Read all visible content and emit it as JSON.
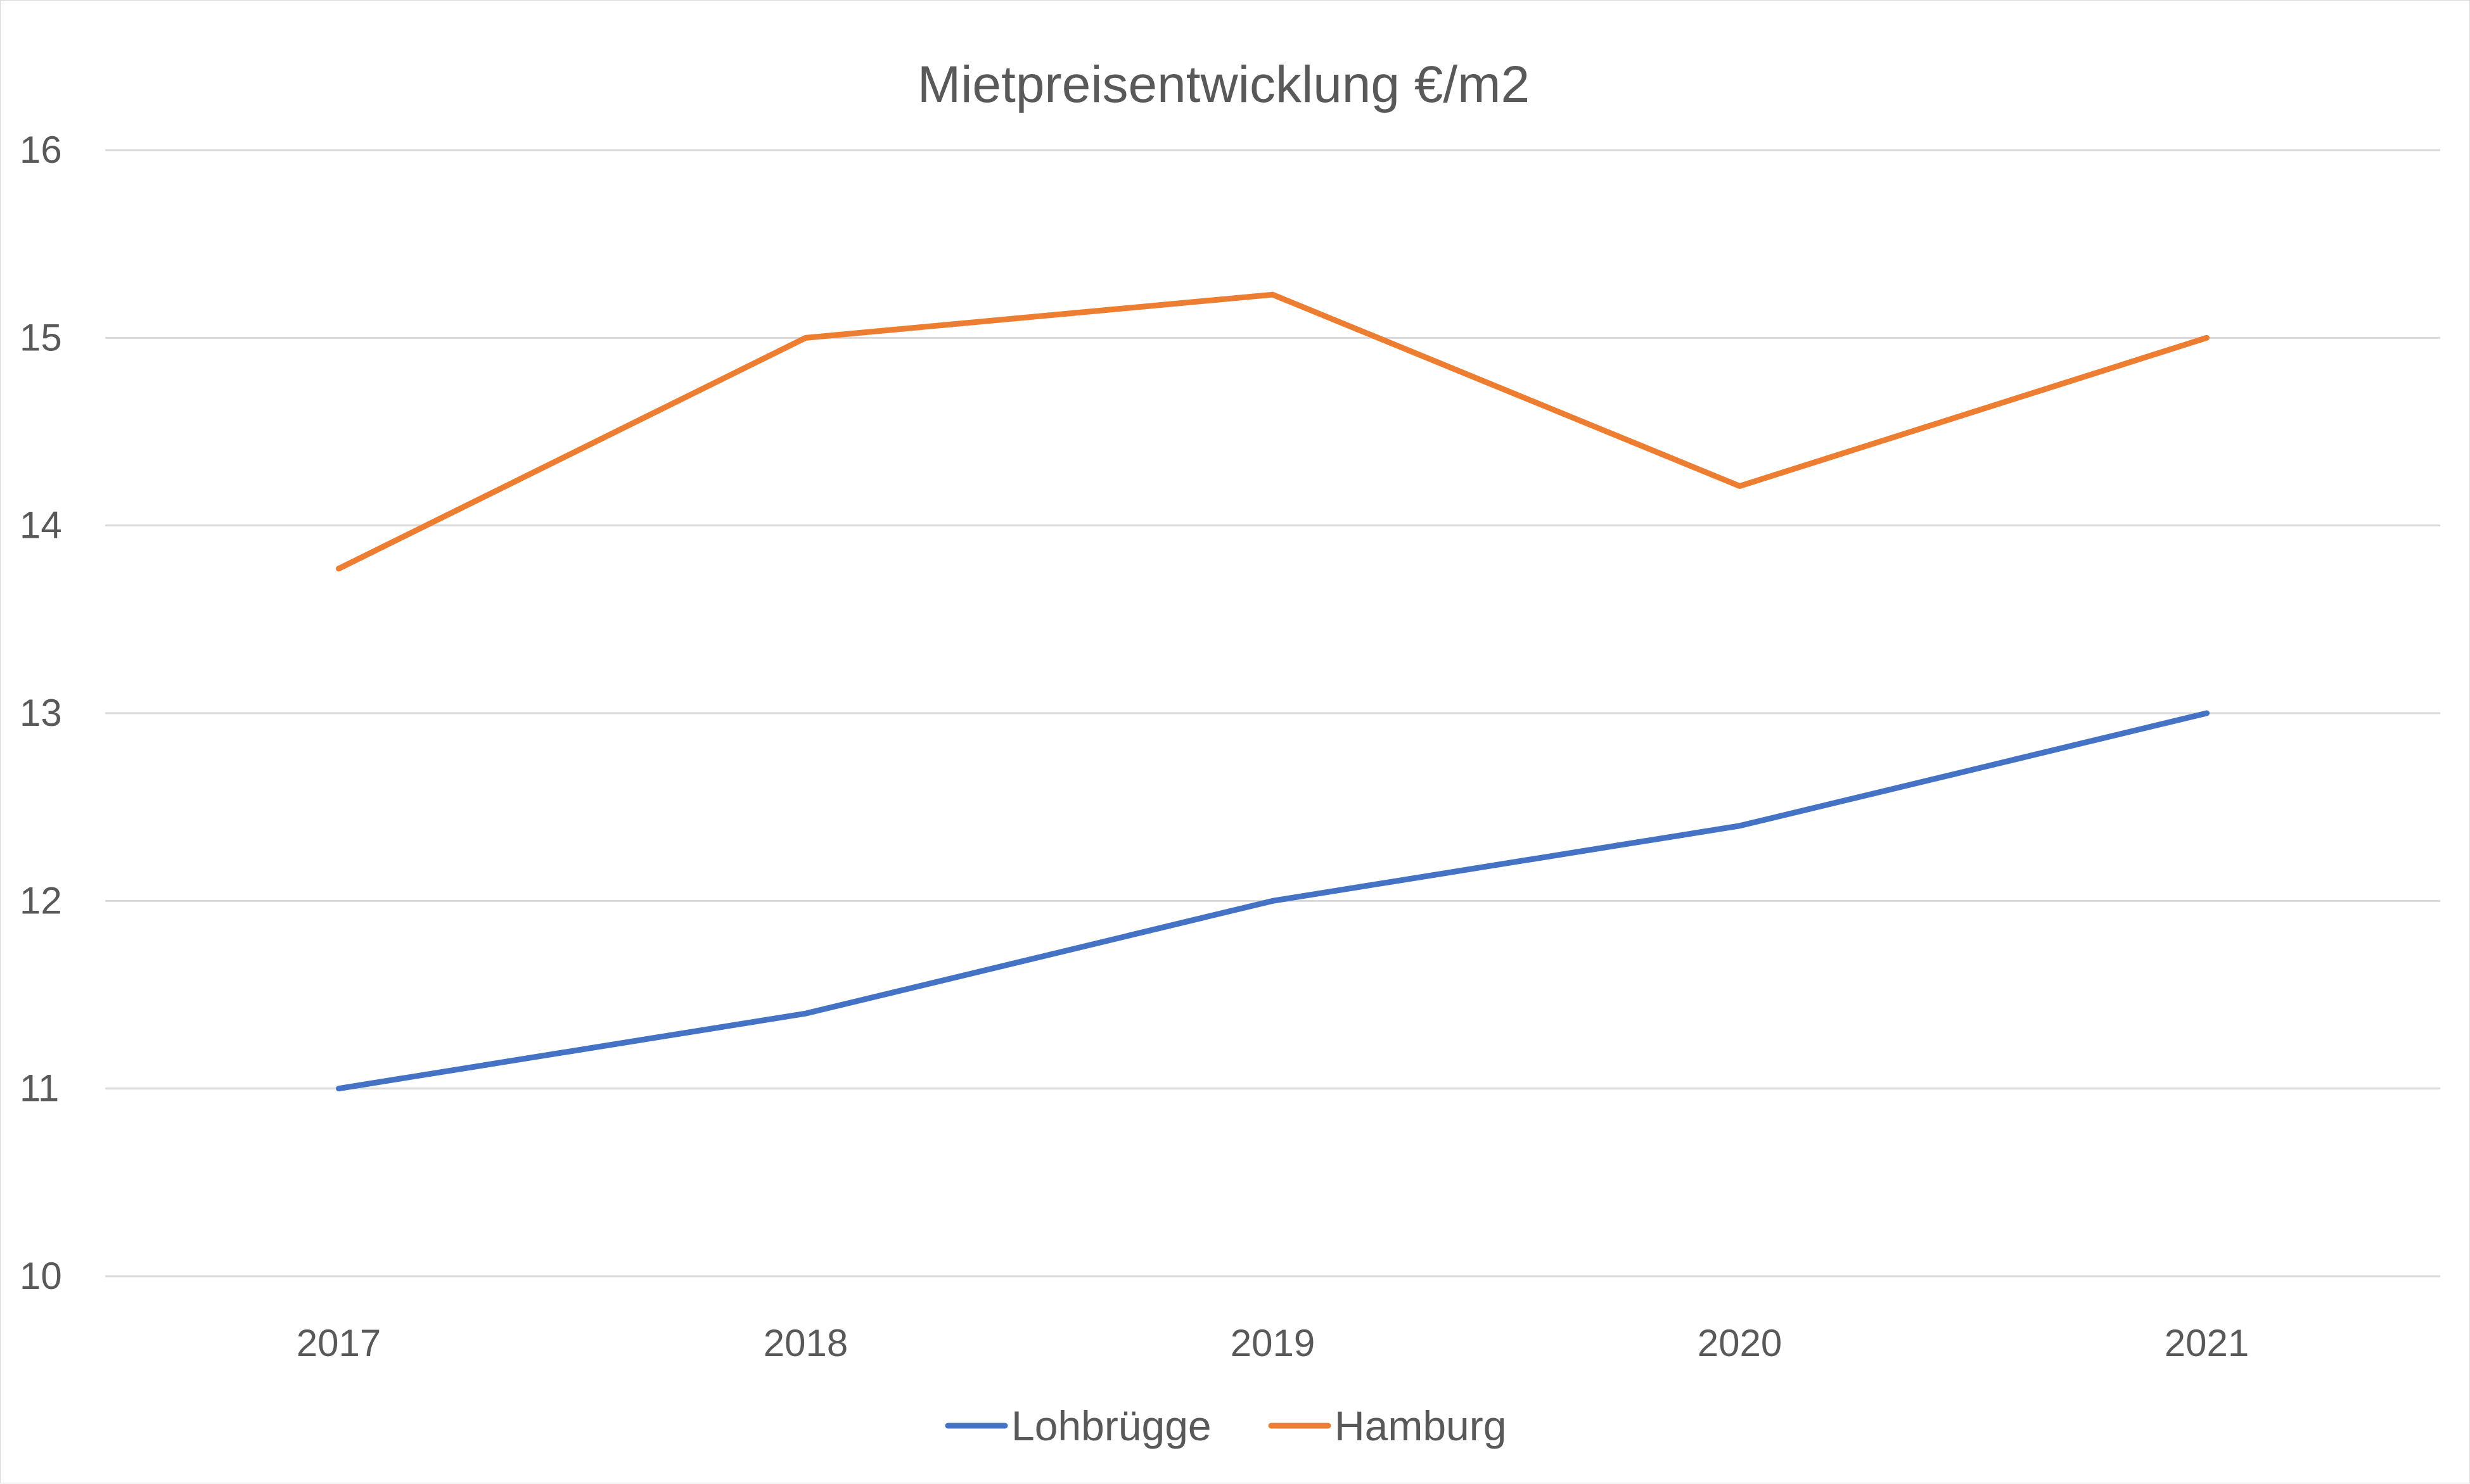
{
  "chart_data": {
    "type": "line",
    "title": "Mietpreisentwicklung  €/m2",
    "xlabel": "",
    "ylabel": "",
    "categories": [
      "2017",
      "2018",
      "2019",
      "2020",
      "2021"
    ],
    "ylim": [
      10,
      16
    ],
    "yticks": [
      "10",
      "11",
      "12",
      "13",
      "14",
      "15",
      "16"
    ],
    "grid": true,
    "legend_position": "bottom",
    "series": [
      {
        "name": "Lohbrügge",
        "color": "#4472c4",
        "values": [
          11.0,
          11.4,
          12.0,
          12.4,
          13.0
        ]
      },
      {
        "name": "Hamburg",
        "color": "#ed7d31",
        "values": [
          13.77,
          15.0,
          15.23,
          14.21,
          15.0
        ]
      }
    ],
    "gridline_color": "#d9d9d9"
  }
}
